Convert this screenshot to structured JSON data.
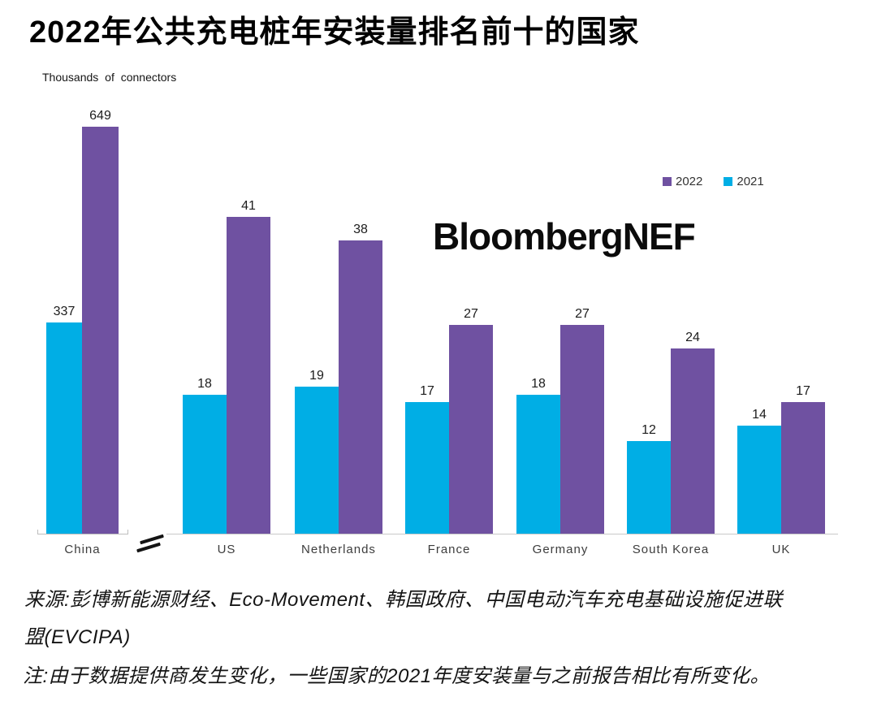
{
  "header": {
    "title": "2022年公共充电桩年安装量排名前十的国家",
    "unit_label": "Thousands of connectors"
  },
  "watermark": {
    "text": "BloombergNEF"
  },
  "footer": {
    "source_line1": "来源:彭博新能源财经、Eco-Movement、韩国政府、中国电动汽车充电基础设施促进联",
    "source_line2": "盟(EVCIPA)",
    "note": "注:由于数据提供商发生变化，一些国家的2021年度安装量与之前报告相比有所变化。"
  },
  "chart_data": {
    "type": "bar",
    "title": "2022年公共充电桩年安装量排名前十的国家",
    "ylabel": "Thousands of connectors",
    "categories": [
      "China",
      "US",
      "Netherlands",
      "France",
      "Germany",
      "South Korea",
      "UK"
    ],
    "series": [
      {
        "name": "2022",
        "color": "#6F51A1",
        "values": [
          649,
          41,
          38,
          27,
          27,
          24,
          17
        ]
      },
      {
        "name": "2021",
        "color": "#00AEE5",
        "values": [
          337,
          18,
          19,
          17,
          18,
          12,
          14
        ]
      }
    ],
    "value_labels": true,
    "grid": false,
    "legend_position": "top-right",
    "axis_break": {
      "between": [
        "China",
        "US"
      ],
      "symbol": "≈",
      "note": "China drawn on a compressed value scale separated from the other countries"
    }
  }
}
